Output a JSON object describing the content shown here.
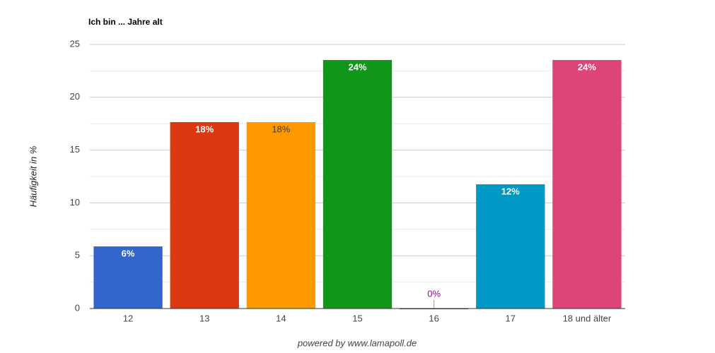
{
  "chart_data": {
    "type": "bar",
    "title": "Ich bin ... Jahre alt",
    "y_label": "Häufigkeit in %",
    "footer": "powered by www.lamapoll.de",
    "categories": [
      "12",
      "13",
      "14",
      "15",
      "16",
      "17",
      "18 und älter"
    ],
    "values": [
      5.88,
      17.65,
      17.65,
      23.53,
      0,
      11.76,
      23.53
    ],
    "value_labels": [
      "6%",
      "18%",
      "18%",
      "24%",
      "0%",
      "12%",
      "24%"
    ],
    "colors": [
      "#3366cc",
      "#dc3912",
      "#ff9900",
      "#109618",
      "#990099",
      "#0099c6",
      "#dd4477"
    ],
    "label_colors": [
      "#ffffff",
      "#ffffff",
      "#404040",
      "#ffffff",
      "#990099",
      "#ffffff",
      "#ffffff"
    ],
    "ylim": [
      0,
      25
    ],
    "yticks": [
      0,
      5,
      10,
      15,
      20,
      25
    ],
    "grid": true
  }
}
